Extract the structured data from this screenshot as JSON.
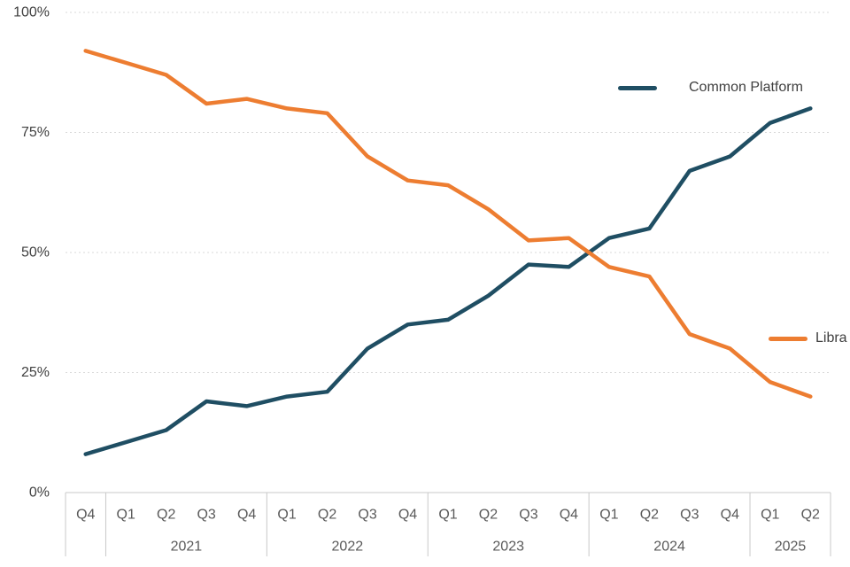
{
  "chart_data": {
    "type": "line",
    "title": "",
    "xlabel": "",
    "ylabel": "",
    "ylim": [
      0,
      100
    ],
    "grid": "horizontal-dotted",
    "legend_position": "overlay-right",
    "y_ticks": [
      {
        "value": 100,
        "label": "100%"
      },
      {
        "value": 75,
        "label": "75%"
      },
      {
        "value": 50,
        "label": "50%"
      },
      {
        "value": 25,
        "label": "25%"
      },
      {
        "value": 0,
        "label": "0%"
      }
    ],
    "quarters": [
      "Q4",
      "Q1",
      "Q2",
      "Q3",
      "Q4",
      "Q1",
      "Q2",
      "Q3",
      "Q4",
      "Q1",
      "Q2",
      "Q3",
      "Q4",
      "Q1",
      "Q2",
      "Q3",
      "Q4",
      "Q1",
      "Q2"
    ],
    "year_groups": [
      {
        "label": "",
        "span": 1
      },
      {
        "label": "2021",
        "span": 4
      },
      {
        "label": "2022",
        "span": 4
      },
      {
        "label": "2023",
        "span": 4
      },
      {
        "label": "2024",
        "span": 4
      },
      {
        "label": "2025",
        "span": 2
      }
    ],
    "series": [
      {
        "name": "Common Platform",
        "color": "#1f4e63",
        "values": [
          8,
          10.5,
          13,
          19,
          18,
          20,
          21,
          30,
          35,
          36,
          41,
          47.5,
          47,
          53,
          55,
          67,
          70,
          77,
          80
        ]
      },
      {
        "name": "Libra",
        "color": "#ed7d31",
        "values": [
          92,
          89.5,
          87,
          81,
          82,
          80,
          79,
          70,
          65,
          64,
          59,
          52.5,
          53,
          47,
          45,
          33,
          30,
          23,
          20
        ]
      }
    ]
  },
  "colors": {
    "gridline": "#d9d9d9",
    "axis_line": "#c9c9c9",
    "y_tick_text": "#404040",
    "x_tick_text": "#595959"
  }
}
